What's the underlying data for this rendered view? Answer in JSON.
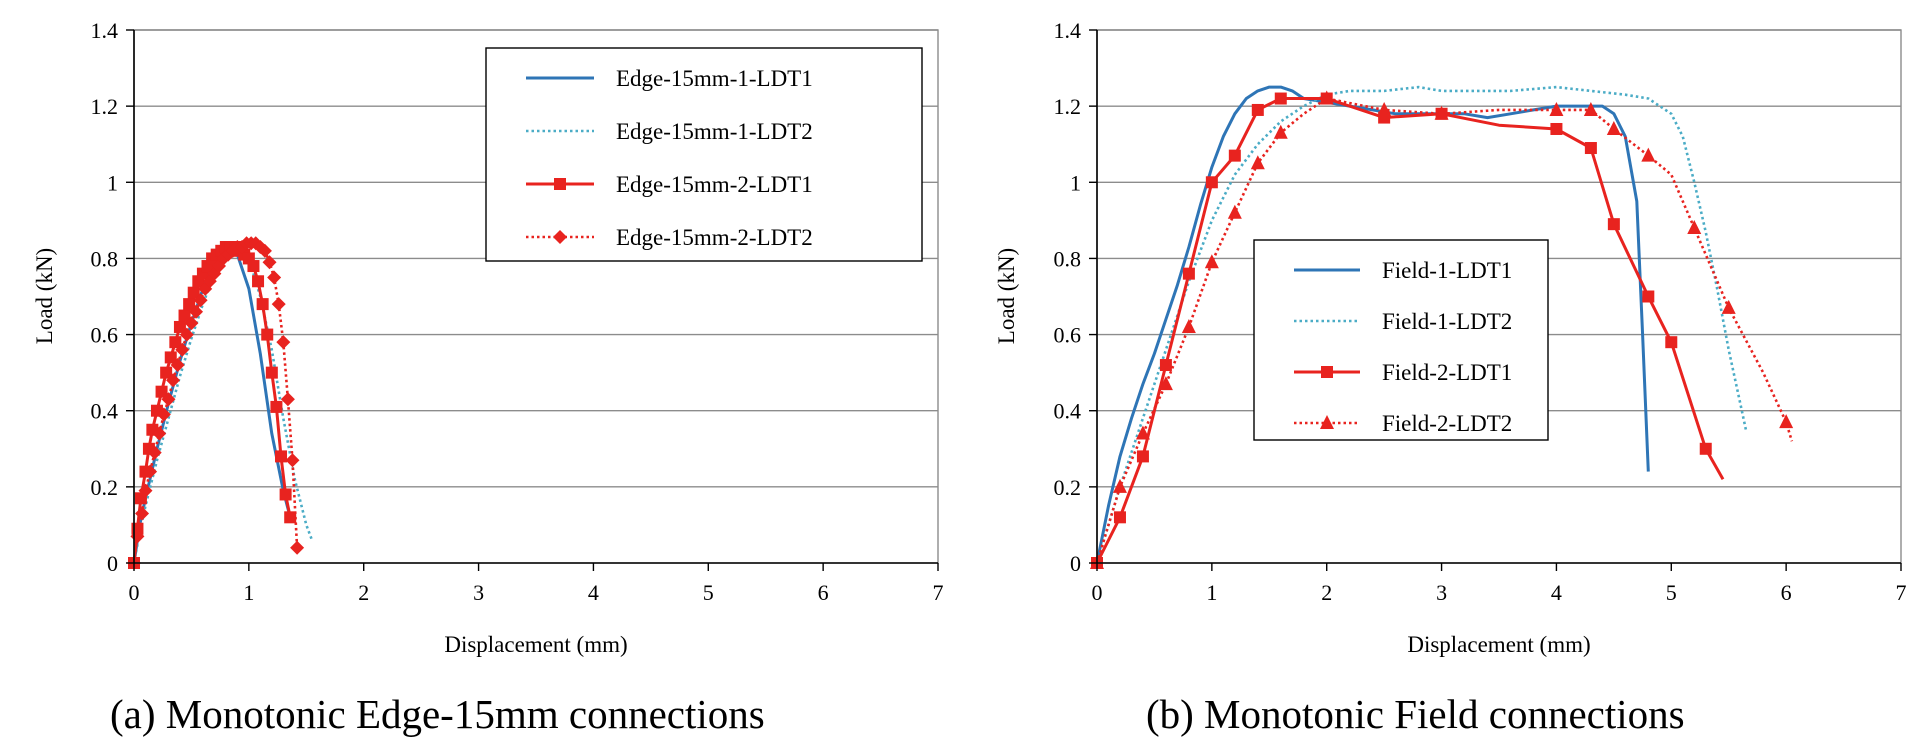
{
  "chart_data": [
    {
      "type": "line",
      "caption": "(a)  Monotonic Edge-15mm connections",
      "xlabel": "Displacement (mm)",
      "ylabel": "Load (kN)",
      "xlim": [
        0,
        7
      ],
      "ylim": [
        0,
        1.4
      ],
      "xticks": [
        "0",
        "1",
        "2",
        "3",
        "4",
        "5",
        "6",
        "7"
      ],
      "yticks": [
        "0",
        "0.2",
        "0.4",
        "0.6",
        "0.8",
        "1",
        "1.2",
        "1.4"
      ],
      "grid": "horizontal",
      "legend_position": "top-right",
      "series": [
        {
          "name": "Edge-15mm-1-LDT1",
          "color": "#2e75b6",
          "style": "solid",
          "marker": "none",
          "x": [
            0,
            0.05,
            0.1,
            0.2,
            0.3,
            0.4,
            0.5,
            0.6,
            0.7,
            0.8,
            0.9,
            1.0,
            1.1,
            1.2,
            1.3,
            1.36
          ],
          "y": [
            0,
            0.1,
            0.17,
            0.3,
            0.42,
            0.53,
            0.63,
            0.72,
            0.79,
            0.83,
            0.81,
            0.72,
            0.55,
            0.34,
            0.19,
            0.12
          ]
        },
        {
          "name": "Edge-15mm-1-LDT2",
          "color": "#4bacc6",
          "style": "dotted",
          "marker": "none",
          "x": [
            0,
            0.05,
            0.1,
            0.2,
            0.3,
            0.4,
            0.5,
            0.6,
            0.7,
            0.8,
            0.9,
            1.0,
            1.1,
            1.2,
            1.3,
            1.4,
            1.5,
            1.55
          ],
          "y": [
            0,
            0.08,
            0.15,
            0.27,
            0.38,
            0.49,
            0.59,
            0.68,
            0.76,
            0.81,
            0.83,
            0.8,
            0.7,
            0.56,
            0.38,
            0.22,
            0.1,
            0.06
          ]
        },
        {
          "name": "Edge-15mm-2-LDT1",
          "color": "#e8231f",
          "style": "solid",
          "marker": "square",
          "x": [
            0,
            0.03,
            0.06,
            0.1,
            0.13,
            0.16,
            0.2,
            0.24,
            0.28,
            0.32,
            0.36,
            0.4,
            0.44,
            0.48,
            0.52,
            0.56,
            0.6,
            0.64,
            0.68,
            0.72,
            0.76,
            0.8,
            0.84,
            0.88,
            0.92,
            0.96,
            1.0,
            1.04,
            1.08,
            1.12,
            1.16,
            1.2,
            1.24,
            1.28,
            1.32,
            1.36
          ],
          "y": [
            0,
            0.09,
            0.17,
            0.24,
            0.3,
            0.35,
            0.4,
            0.45,
            0.5,
            0.54,
            0.58,
            0.62,
            0.65,
            0.68,
            0.71,
            0.74,
            0.76,
            0.78,
            0.8,
            0.81,
            0.82,
            0.83,
            0.83,
            0.83,
            0.82,
            0.81,
            0.8,
            0.78,
            0.74,
            0.68,
            0.6,
            0.5,
            0.41,
            0.28,
            0.18,
            0.12
          ]
        },
        {
          "name": "Edge-15mm-2-LDT2",
          "color": "#e8231f",
          "style": "dotted",
          "marker": "diamond",
          "x": [
            0,
            0.03,
            0.07,
            0.1,
            0.14,
            0.18,
            0.22,
            0.26,
            0.3,
            0.34,
            0.38,
            0.42,
            0.46,
            0.5,
            0.54,
            0.58,
            0.62,
            0.66,
            0.7,
            0.74,
            0.78,
            0.82,
            0.86,
            0.9,
            0.94,
            0.98,
            1.02,
            1.06,
            1.1,
            1.14,
            1.18,
            1.22,
            1.26,
            1.3,
            1.34,
            1.38,
            1.42
          ],
          "y": [
            0,
            0.07,
            0.13,
            0.19,
            0.24,
            0.29,
            0.34,
            0.39,
            0.43,
            0.48,
            0.52,
            0.56,
            0.6,
            0.63,
            0.66,
            0.69,
            0.72,
            0.74,
            0.76,
            0.78,
            0.8,
            0.81,
            0.82,
            0.83,
            0.83,
            0.84,
            0.84,
            0.84,
            0.83,
            0.82,
            0.79,
            0.75,
            0.68,
            0.58,
            0.43,
            0.27,
            0.04
          ]
        }
      ]
    },
    {
      "type": "line",
      "caption": "(b)  Monotonic Field connections",
      "xlabel": "Displacement (mm)",
      "ylabel": "Load (kN)",
      "xlim": [
        0,
        7
      ],
      "ylim": [
        0,
        1.4
      ],
      "xticks": [
        "0",
        "1",
        "2",
        "3",
        "4",
        "5",
        "6",
        "7"
      ],
      "yticks": [
        "0",
        "0.2",
        "0.4",
        "0.6",
        "0.8",
        "1",
        "1.2",
        "1.4"
      ],
      "grid": "horizontal",
      "legend_position": "center-left",
      "series": [
        {
          "name": "Field-1-LDT1",
          "color": "#2e75b6",
          "style": "solid",
          "marker": "none",
          "x": [
            0,
            0.1,
            0.2,
            0.3,
            0.4,
            0.5,
            0.6,
            0.7,
            0.8,
            0.9,
            1.0,
            1.1,
            1.2,
            1.3,
            1.4,
            1.5,
            1.6,
            1.7,
            1.8,
            2.0,
            2.2,
            2.4,
            2.6,
            2.8,
            3.0,
            3.2,
            3.4,
            3.6,
            3.8,
            4.0,
            4.2,
            4.4,
            4.5,
            4.6,
            4.7,
            4.75,
            4.8
          ],
          "y": [
            0,
            0.15,
            0.28,
            0.38,
            0.47,
            0.55,
            0.64,
            0.73,
            0.83,
            0.94,
            1.04,
            1.12,
            1.18,
            1.22,
            1.24,
            1.25,
            1.25,
            1.24,
            1.22,
            1.21,
            1.2,
            1.19,
            1.18,
            1.18,
            1.18,
            1.18,
            1.17,
            1.18,
            1.19,
            1.2,
            1.2,
            1.2,
            1.18,
            1.12,
            0.95,
            0.6,
            0.24
          ]
        },
        {
          "name": "Field-1-LDT2",
          "color": "#4bacc6",
          "style": "dotted",
          "marker": "none",
          "x": [
            0,
            0.2,
            0.4,
            0.6,
            0.8,
            1.0,
            1.2,
            1.4,
            1.6,
            1.8,
            2.0,
            2.2,
            2.5,
            2.8,
            3.0,
            3.3,
            3.6,
            4.0,
            4.3,
            4.6,
            4.8,
            5.0,
            5.1,
            5.2,
            5.3,
            5.4,
            5.5,
            5.6,
            5.65
          ],
          "y": [
            0,
            0.2,
            0.38,
            0.56,
            0.74,
            0.9,
            1.02,
            1.1,
            1.16,
            1.2,
            1.23,
            1.24,
            1.24,
            1.25,
            1.24,
            1.24,
            1.24,
            1.25,
            1.24,
            1.23,
            1.22,
            1.18,
            1.12,
            1.0,
            0.87,
            0.72,
            0.56,
            0.42,
            0.35
          ]
        },
        {
          "name": "Field-2-LDT1",
          "color": "#e8231f",
          "style": "solid",
          "marker": "square",
          "x": [
            0,
            0.2,
            0.4,
            0.6,
            0.8,
            1.0,
            1.2,
            1.4,
            1.6,
            1.8,
            2.0,
            2.5,
            3.0,
            3.5,
            4.0,
            4.3,
            4.5,
            4.8,
            5.0,
            5.3,
            5.45
          ],
          "y": [
            0,
            0.12,
            0.28,
            0.52,
            0.76,
            1.0,
            1.07,
            1.19,
            1.22,
            1.22,
            1.22,
            1.17,
            1.18,
            1.15,
            1.14,
            1.09,
            0.89,
            0.7,
            0.58,
            0.3,
            0.22
          ],
          "marker_x": [
            0,
            0.2,
            0.4,
            0.6,
            0.8,
            1.0,
            1.2,
            1.4,
            1.6,
            2.0,
            2.5,
            3.0,
            4.0,
            4.3,
            4.5,
            4.8,
            5.0,
            5.3
          ],
          "marker_y": [
            0,
            0.12,
            0.28,
            0.52,
            0.76,
            1.0,
            1.07,
            1.19,
            1.22,
            1.22,
            1.17,
            1.18,
            1.14,
            1.09,
            0.89,
            0.7,
            0.58,
            0.3
          ]
        },
        {
          "name": "Field-2-LDT2",
          "color": "#e8231f",
          "style": "dotted",
          "marker": "triangle",
          "x": [
            0,
            0.2,
            0.4,
            0.6,
            0.8,
            1.0,
            1.2,
            1.4,
            1.6,
            1.8,
            2.0,
            2.5,
            3.0,
            3.5,
            4.0,
            4.3,
            4.5,
            4.8,
            5.0,
            5.2,
            5.5,
            5.8,
            6.0,
            6.05
          ],
          "y": [
            0,
            0.2,
            0.34,
            0.47,
            0.62,
            0.79,
            0.92,
            1.05,
            1.13,
            1.18,
            1.22,
            1.19,
            1.18,
            1.19,
            1.19,
            1.19,
            1.14,
            1.07,
            1.02,
            0.88,
            0.67,
            0.5,
            0.37,
            0.32
          ],
          "marker_x": [
            0,
            0.2,
            0.4,
            0.6,
            0.8,
            1.0,
            1.2,
            1.4,
            1.6,
            2.0,
            2.5,
            3.0,
            4.0,
            4.3,
            4.5,
            4.8,
            5.2,
            5.5,
            6.0
          ],
          "marker_y": [
            0,
            0.2,
            0.34,
            0.47,
            0.62,
            0.79,
            0.92,
            1.05,
            1.13,
            1.22,
            1.19,
            1.18,
            1.19,
            1.19,
            1.14,
            1.07,
            0.88,
            0.67,
            0.37
          ]
        }
      ]
    }
  ]
}
